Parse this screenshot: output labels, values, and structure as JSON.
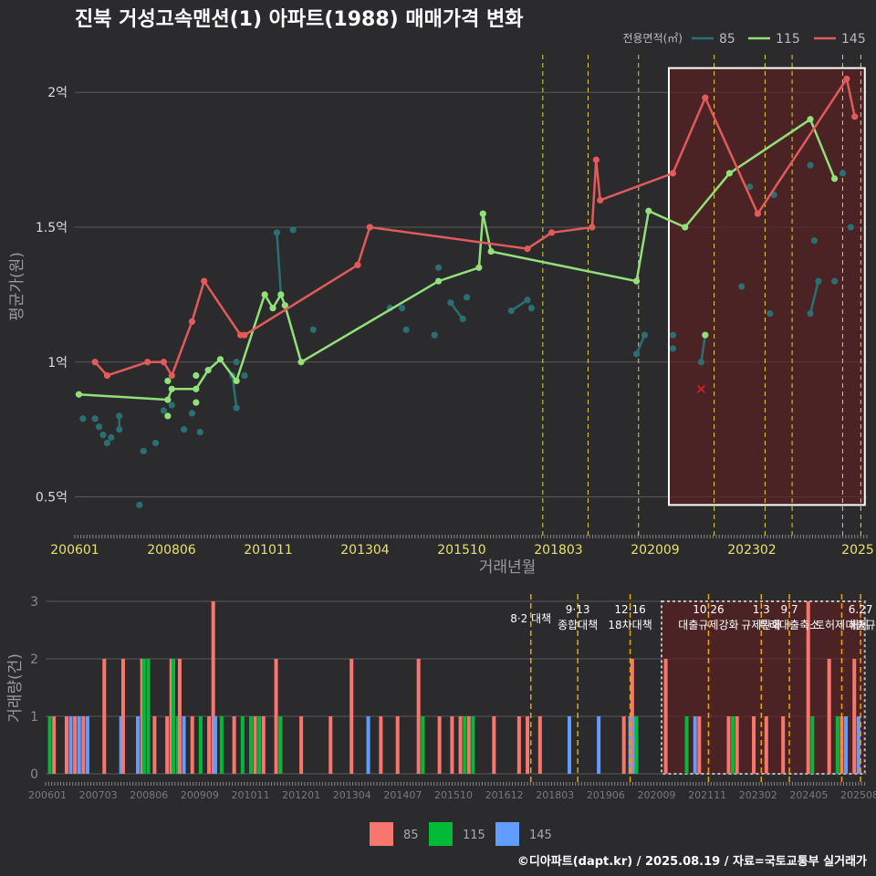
{
  "title": "진북 거성고속맨션(1) 아파트(1988) 매매가격 변화",
  "footer": "©디아파트(dapt.kr) / 2025.08.19 / 자료=국토교통부 실거래가",
  "colors": {
    "s85": "#2a6f73",
    "s115": "#92e07a",
    "s145": "#e25a5a",
    "bar85": "#f8766d",
    "bar115": "#00ba38",
    "bar145": "#619cff",
    "bg": "#2b2b2d",
    "vline": "#e5d23b",
    "vlineBottom": "#e6a800"
  },
  "chart_data": [
    {
      "type": "line",
      "xlabel": "거래년월",
      "ylabel": "평균가(원)",
      "legend_title": "전용면적(㎡)",
      "legend_position": "top-right",
      "x_ticks": [
        "200601",
        "200806",
        "201011",
        "201304",
        "201510",
        "201803",
        "202009",
        "202302",
        "2025"
      ],
      "y_ticks": [
        {
          "v": 0.5,
          "label": "0.5억"
        },
        {
          "v": 1,
          "label": "1억"
        },
        {
          "v": 1.5,
          "label": "1.5억"
        },
        {
          "v": 2,
          "label": "2억"
        }
      ],
      "ylim": [
        0.38,
        2.18
      ],
      "xlim": [
        2006.0,
        2025.6
      ],
      "grid": true,
      "highlight_box": {
        "x0": 2020.7,
        "x1": 2025.55,
        "y0": 0.47,
        "y1": 2.09
      },
      "vlines": [
        2017.58,
        2018.7,
        2019.95,
        2021.82,
        2023.08,
        2023.75,
        2025.0,
        2025.45
      ],
      "series": [
        {
          "name": "85",
          "color_key": "s85",
          "points": [
            [
              2006.2,
              0.79
            ],
            [
              2006.5,
              0.79
            ],
            [
              2006.6,
              0.76
            ],
            [
              2006.7,
              0.73
            ],
            [
              2006.8,
              0.7
            ],
            [
              2006.9,
              0.72
            ],
            [
              2007.1,
              0.75
            ],
            [
              2007.1,
              0.8
            ],
            [
              2007.6,
              0.47
            ],
            [
              2007.7,
              0.67
            ],
            [
              2008.0,
              0.7
            ],
            [
              2008.2,
              0.82
            ],
            [
              2008.4,
              0.84
            ],
            [
              2008.7,
              0.75
            ],
            [
              2008.9,
              0.81
            ],
            [
              2009.1,
              0.74
            ],
            [
              2009.9,
              0.95
            ],
            [
              2010.0,
              0.83
            ],
            [
              2010.0,
              1.0
            ],
            [
              2010.2,
              0.95
            ],
            [
              2011.0,
              1.48
            ],
            [
              2011.1,
              1.25
            ],
            [
              2011.4,
              1.49
            ],
            [
              2011.9,
              1.12
            ],
            [
              2013.8,
              1.2
            ],
            [
              2014.1,
              1.2
            ],
            [
              2014.2,
              1.12
            ],
            [
              2014.9,
              1.1
            ],
            [
              2015.0,
              1.35
            ],
            [
              2015.3,
              1.22
            ],
            [
              2015.6,
              1.16
            ],
            [
              2015.7,
              1.24
            ],
            [
              2016.8,
              1.19
            ],
            [
              2017.2,
              1.23
            ],
            [
              2017.3,
              1.2
            ],
            [
              2019.9,
              1.03
            ],
            [
              2020.1,
              1.1
            ],
            [
              2020.8,
              1.1
            ],
            [
              2020.8,
              1.05
            ],
            [
              2021.5,
              1.0
            ],
            [
              2021.6,
              1.1
            ],
            [
              2022.5,
              1.28
            ],
            [
              2022.7,
              1.65
            ],
            [
              2023.2,
              1.18
            ],
            [
              2023.3,
              1.62
            ],
            [
              2024.2,
              1.73
            ],
            [
              2024.2,
              1.18
            ],
            [
              2024.3,
              1.45
            ],
            [
              2024.4,
              1.3
            ],
            [
              2024.8,
              1.3
            ],
            [
              2025.0,
              1.7
            ],
            [
              2025.2,
              1.5
            ]
          ],
          "links": [
            [
              6,
              7
            ],
            [
              16,
              17
            ],
            [
              20,
              21
            ],
            [
              29,
              30
            ],
            [
              32,
              33
            ],
            [
              35,
              36
            ],
            [
              39,
              40
            ],
            [
              46,
              48
            ]
          ]
        },
        {
          "name": "115",
          "color_key": "s115",
          "points": [
            [
              2006.1,
              0.88
            ],
            [
              2008.3,
              0.86
            ],
            [
              2008.4,
              0.9
            ],
            [
              2009.0,
              0.9
            ],
            [
              2009.3,
              0.97
            ],
            [
              2009.6,
              1.01
            ],
            [
              2010.0,
              0.93
            ],
            [
              2010.7,
              1.25
            ],
            [
              2010.9,
              1.2
            ],
            [
              2011.1,
              1.25
            ],
            [
              2011.2,
              1.21
            ],
            [
              2011.6,
              1.0
            ],
            [
              2015.0,
              1.3
            ],
            [
              2016.0,
              1.35
            ],
            [
              2016.1,
              1.55
            ],
            [
              2016.3,
              1.41
            ],
            [
              2019.9,
              1.3
            ],
            [
              2020.2,
              1.56
            ],
            [
              2021.1,
              1.5
            ],
            [
              2022.2,
              1.7
            ],
            [
              2024.2,
              1.9
            ],
            [
              2024.8,
              1.68
            ]
          ],
          "extra_points": [
            [
              2008.3,
              0.93
            ],
            [
              2008.3,
              0.8
            ],
            [
              2009.0,
              0.85
            ],
            [
              2009.0,
              0.95
            ],
            [
              2021.6,
              1.1
            ]
          ]
        },
        {
          "name": "145",
          "color_key": "s145",
          "points": [
            [
              2006.5,
              1.0
            ],
            [
              2006.8,
              0.95
            ],
            [
              2007.8,
              1.0
            ],
            [
              2008.2,
              1.0
            ],
            [
              2008.4,
              0.95
            ],
            [
              2008.9,
              1.15
            ],
            [
              2009.2,
              1.3
            ],
            [
              2010.1,
              1.1
            ],
            [
              2010.2,
              1.1
            ],
            [
              2013.0,
              1.36
            ],
            [
              2013.3,
              1.5
            ],
            [
              2017.2,
              1.42
            ],
            [
              2017.8,
              1.48
            ],
            [
              2018.8,
              1.5
            ],
            [
              2018.9,
              1.75
            ],
            [
              2019.0,
              1.6
            ],
            [
              2020.8,
              1.7
            ],
            [
              2021.6,
              1.98
            ],
            [
              2022.9,
              1.55
            ],
            [
              2025.1,
              2.05
            ],
            [
              2025.3,
              1.91
            ]
          ],
          "outlier": [
            2021.5,
            0.9
          ]
        }
      ]
    },
    {
      "type": "bar",
      "xlabel": "",
      "ylabel": "거래량(건)",
      "ylim": [
        0,
        3
      ],
      "y_ticks": [
        0,
        1,
        2,
        3
      ],
      "x_ticks": [
        "200601",
        "200703",
        "200806",
        "200909",
        "201011",
        "201201",
        "201304",
        "201407",
        "201510",
        "201612",
        "201803",
        "201906",
        "202009",
        "202111",
        "202302",
        "202405",
        "202508"
      ],
      "xlim": [
        2006.0,
        2025.6
      ],
      "legend_position": "bottom",
      "legend": [
        {
          "name": "85",
          "color_key": "bar85"
        },
        {
          "name": "115",
          "color_key": "bar115"
        },
        {
          "name": "145",
          "color_key": "bar145"
        }
      ],
      "highlight_box": {
        "x0": 2020.7,
        "x1": 2025.55
      },
      "vlines": [
        2017.58,
        2018.7,
        2019.95,
        2021.82,
        2023.08,
        2023.75,
        2025.0,
        2025.45
      ],
      "annotations": [
        {
          "x": 2017.58,
          "lines": [
            "8·2 대책"
          ]
        },
        {
          "x": 2018.7,
          "lines": [
            "9·13",
            "종합대책"
          ]
        },
        {
          "x": 2019.95,
          "lines": [
            "12·16",
            "18차대책"
          ]
        },
        {
          "x": 2021.82,
          "lines": [
            "10.26",
            "대출규제강화"
          ]
        },
        {
          "x": 2023.08,
          "lines": [
            "1.3",
            "규제완화"
          ]
        },
        {
          "x": 2023.75,
          "lines": [
            "9.7",
            "특례대출축소"
          ]
        },
        {
          "x": 2025.0,
          "lines": [
            "",
            "토허제 해제"
          ]
        },
        {
          "x": 2025.45,
          "lines": [
            "6.27",
            "대출규"
          ]
        }
      ],
      "bars": [
        [
          2006.1,
          1,
          "bar115"
        ],
        [
          2006.2,
          1,
          "bar85"
        ],
        [
          2006.5,
          1,
          "bar85"
        ],
        [
          2006.6,
          1,
          "bar145"
        ],
        [
          2006.7,
          1,
          "bar85"
        ],
        [
          2006.8,
          1,
          "bar145"
        ],
        [
          2006.9,
          1,
          "bar85"
        ],
        [
          2007.0,
          1,
          "bar145"
        ],
        [
          2007.4,
          2,
          "bar85"
        ],
        [
          2007.8,
          1,
          "bar145"
        ],
        [
          2007.85,
          2,
          "bar85"
        ],
        [
          2008.2,
          1,
          "bar145"
        ],
        [
          2008.3,
          2,
          "bar85"
        ],
        [
          2008.35,
          2,
          "bar115"
        ],
        [
          2008.45,
          2,
          "bar115"
        ],
        [
          2008.6,
          1,
          "bar85"
        ],
        [
          2008.9,
          1,
          "bar85"
        ],
        [
          2009.0,
          2,
          "bar85"
        ],
        [
          2009.05,
          2,
          "bar115"
        ],
        [
          2009.15,
          1,
          "bar115"
        ],
        [
          2009.2,
          2,
          "bar85"
        ],
        [
          2009.3,
          1,
          "bar145"
        ],
        [
          2009.5,
          1,
          "bar85"
        ],
        [
          2009.7,
          1,
          "bar115"
        ],
        [
          2009.9,
          1,
          "bar85"
        ],
        [
          2010.0,
          3,
          "bar85"
        ],
        [
          2010.05,
          1,
          "bar145"
        ],
        [
          2010.2,
          1,
          "bar115"
        ],
        [
          2010.5,
          1,
          "bar85"
        ],
        [
          2010.7,
          1,
          "bar115"
        ],
        [
          2010.9,
          1,
          "bar115"
        ],
        [
          2011.0,
          1,
          "bar85"
        ],
        [
          2011.1,
          1,
          "bar115"
        ],
        [
          2011.2,
          1,
          "bar85"
        ],
        [
          2011.5,
          2,
          "bar85"
        ],
        [
          2011.6,
          1,
          "bar115"
        ],
        [
          2012.1,
          1,
          "bar85"
        ],
        [
          2012.8,
          1,
          "bar85"
        ],
        [
          2013.3,
          2,
          "bar85"
        ],
        [
          2013.7,
          1,
          "bar145"
        ],
        [
          2014.0,
          1,
          "bar85"
        ],
        [
          2014.4,
          1,
          "bar85"
        ],
        [
          2014.9,
          2,
          "bar85"
        ],
        [
          2015.0,
          1,
          "bar115"
        ],
        [
          2015.4,
          1,
          "bar85"
        ],
        [
          2015.7,
          1,
          "bar85"
        ],
        [
          2015.9,
          1,
          "bar85"
        ],
        [
          2016.0,
          1,
          "bar115"
        ],
        [
          2016.1,
          1,
          "bar85"
        ],
        [
          2016.2,
          1,
          "bar115"
        ],
        [
          2016.7,
          1,
          "bar85"
        ],
        [
          2017.3,
          1,
          "bar85"
        ],
        [
          2017.5,
          1,
          "bar85"
        ],
        [
          2017.8,
          1,
          "bar85"
        ],
        [
          2018.5,
          1,
          "bar145"
        ],
        [
          2019.2,
          1,
          "bar145"
        ],
        [
          2019.8,
          1,
          "bar85"
        ],
        [
          2019.95,
          1,
          "bar145"
        ],
        [
          2020.0,
          2,
          "bar85"
        ],
        [
          2020.05,
          1,
          "bar145"
        ],
        [
          2020.1,
          1,
          "bar115"
        ],
        [
          2020.8,
          2,
          "bar85"
        ],
        [
          2021.3,
          1,
          "bar115"
        ],
        [
          2021.5,
          1,
          "bar145"
        ],
        [
          2021.6,
          1,
          "bar85"
        ],
        [
          2022.3,
          1,
          "bar85"
        ],
        [
          2022.4,
          1,
          "bar115"
        ],
        [
          2022.5,
          1,
          "bar85"
        ],
        [
          2022.9,
          1,
          "bar85"
        ],
        [
          2023.2,
          1,
          "bar85"
        ],
        [
          2023.6,
          1,
          "bar85"
        ],
        [
          2024.2,
          3,
          "bar85"
        ],
        [
          2024.3,
          1,
          "bar115"
        ],
        [
          2024.7,
          2,
          "bar85"
        ],
        [
          2024.9,
          1,
          "bar115"
        ],
        [
          2025.0,
          1,
          "bar85"
        ],
        [
          2025.1,
          1,
          "bar145"
        ],
        [
          2025.3,
          2,
          "bar85"
        ],
        [
          2025.4,
          1,
          "bar145"
        ]
      ]
    }
  ]
}
